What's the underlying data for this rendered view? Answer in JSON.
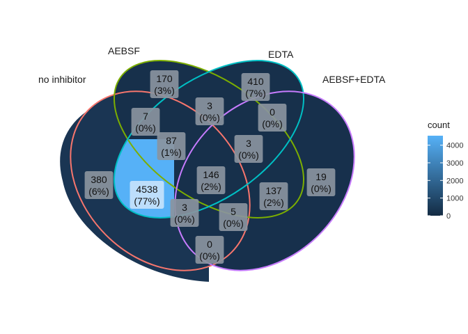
{
  "chart_data": {
    "type": "venn",
    "sets": [
      "no inhibitor",
      "AEBSF",
      "EDTA",
      "AEBSF+EDTA"
    ],
    "set_colors": [
      "#f8766d",
      "#7cae00",
      "#00bfc4",
      "#c77cff"
    ],
    "regions": [
      {
        "sets": [
          "no inhibitor"
        ],
        "count": "380",
        "percent": "(6%)"
      },
      {
        "sets": [
          "AEBSF"
        ],
        "count": "170",
        "percent": "(3%)"
      },
      {
        "sets": [
          "EDTA"
        ],
        "count": "410",
        "percent": "(7%)"
      },
      {
        "sets": [
          "AEBSF+EDTA"
        ],
        "count": "19",
        "percent": "(0%)"
      },
      {
        "sets": [
          "no inhibitor",
          "AEBSF"
        ],
        "count": "7",
        "percent": "(0%)"
      },
      {
        "sets": [
          "AEBSF",
          "EDTA"
        ],
        "count": "3",
        "percent": "(0%)"
      },
      {
        "sets": [
          "EDTA",
          "AEBSF+EDTA"
        ],
        "count": "0",
        "percent": "(0%)"
      },
      {
        "sets": [
          "no inhibitor",
          "AEBSF",
          "EDTA"
        ],
        "count": "87",
        "percent": "(1%)"
      },
      {
        "sets": [
          "AEBSF",
          "EDTA",
          "AEBSF+EDTA"
        ],
        "count": "3",
        "percent": "(0%)"
      },
      {
        "sets": [
          "no inhibitor",
          "EDTA"
        ],
        "count": "4538",
        "percent": "(77%)"
      },
      {
        "sets": [
          "no inhibitor",
          "AEBSF",
          "EDTA",
          "AEBSF+EDTA"
        ],
        "count": "146",
        "percent": "(2%)"
      },
      {
        "sets": [
          "AEBSF",
          "AEBSF+EDTA"
        ],
        "count": "137",
        "percent": "(2%)"
      },
      {
        "sets": [
          "no inhibitor",
          "EDTA",
          "AEBSF+EDTA"
        ],
        "count": "3",
        "percent": "(0%)"
      },
      {
        "sets": [
          "no inhibitor",
          "AEBSF",
          "AEBSF+EDTA"
        ],
        "count": "5",
        "percent": "(0%)"
      },
      {
        "sets": [
          "no inhibitor",
          "AEBSF+EDTA"
        ],
        "count": "0",
        "percent": "(0%)"
      }
    ],
    "legend": {
      "title": "count",
      "ticks": [
        0,
        1000,
        2000,
        3000,
        4000
      ],
      "range": [
        0,
        4538
      ],
      "low_color": "#132b43",
      "high_color": "#56b1f7",
      "position": "right"
    },
    "grid": false
  }
}
